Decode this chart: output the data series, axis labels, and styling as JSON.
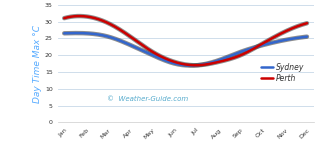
{
  "months": [
    "Jan",
    "Feb",
    "Mar",
    "Apr",
    "May",
    "Jun",
    "Jul",
    "Aug",
    "Sep",
    "Oct",
    "Nov",
    "Dec"
  ],
  "sydney": [
    26.5,
    26.5,
    25.5,
    23.0,
    20.0,
    17.5,
    17.0,
    18.5,
    21.0,
    23.0,
    24.5,
    25.5
  ],
  "perth": [
    31.0,
    31.5,
    29.5,
    25.5,
    21.0,
    18.0,
    17.0,
    18.0,
    20.0,
    23.5,
    27.0,
    29.5
  ],
  "sydney_color": "#3366cc",
  "perth_color": "#cc0000",
  "shadow_color": "#444444",
  "bg_color": "#ffffff",
  "grid_color": "#c8d8e8",
  "ylabel": "Day Time Max °C",
  "ylabel_color": "#55aaff",
  "watermark": "©  Weather-Guide.com",
  "watermark_color": "#55aacc",
  "ylim": [
    0,
    35
  ],
  "yticks": [
    0,
    5,
    10,
    15,
    20,
    25,
    30,
    35
  ],
  "linewidth": 1.8,
  "shadow_linewidth": 3.2,
  "legend_sydney": "Sydney",
  "legend_perth": "Perth"
}
